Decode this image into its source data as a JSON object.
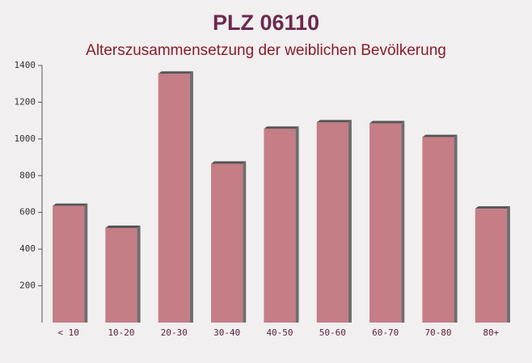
{
  "chart_data": {
    "type": "bar",
    "title": "PLZ 06110",
    "subtitle": "Alterszusammensetzung der weiblichen Bevölkerung",
    "categories": [
      "< 10",
      "10-20",
      "20-30",
      "30-40",
      "40-50",
      "50-60",
      "60-70",
      "70-80",
      "80+"
    ],
    "values": [
      635,
      515,
      1355,
      865,
      1055,
      1090,
      1085,
      1010,
      620
    ],
    "color": "#c0707a",
    "ylim": [
      0,
      1400
    ],
    "yticks": [
      200,
      400,
      600,
      800,
      1000,
      1200,
      1400
    ],
    "grid": false
  }
}
